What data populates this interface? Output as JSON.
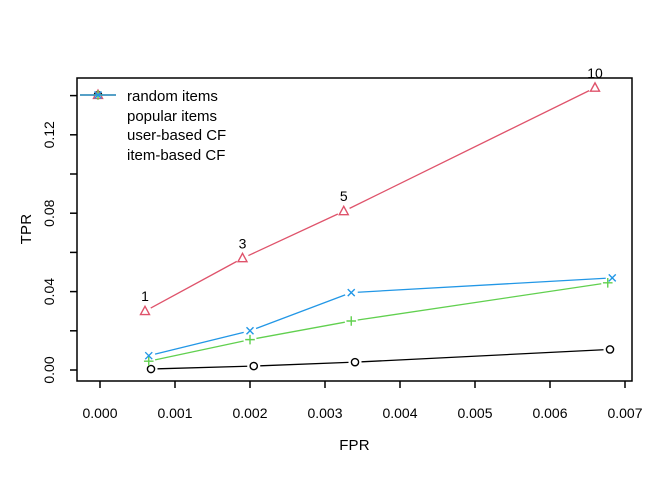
{
  "chart_data": {
    "type": "line",
    "title": "",
    "xlabel": "FPR",
    "ylabel": "TPR",
    "xlim": [
      0.0,
      0.007
    ],
    "ylim": [
      0.0,
      0.145
    ],
    "grid": false,
    "legend_position": "top-left",
    "background_color": "#ffffff",
    "axis_color": "#000000",
    "x_ticks": {
      "values": [
        0.0,
        0.001,
        0.002,
        0.003,
        0.004,
        0.005,
        0.006,
        0.007
      ],
      "labels": [
        "0.000",
        "0.001",
        "0.002",
        "0.003",
        "0.004",
        "0.005",
        "0.006",
        "0.007"
      ]
    },
    "y_ticks": {
      "values": [
        0.0,
        0.02,
        0.04,
        0.06,
        0.08,
        0.1,
        0.12,
        0.14
      ],
      "labels": [
        "0.00",
        "",
        "0.04",
        "",
        "0.08",
        "",
        "0.12",
        ""
      ]
    },
    "series": [
      {
        "name": "random items",
        "color": "#000000",
        "marker": "circle",
        "x": [
          0.00068,
          0.00205,
          0.0034,
          0.0068
        ],
        "y": [
          0.0005,
          0.002,
          0.004,
          0.0105
        ],
        "point_labels": [
          "",
          "",
          "",
          ""
        ]
      },
      {
        "name": "popular items",
        "color": "#DF536B",
        "marker": "triangle",
        "x": [
          0.0006,
          0.0019,
          0.00325,
          0.0066
        ],
        "y": [
          0.03,
          0.057,
          0.081,
          0.144
        ],
        "point_labels": [
          "1",
          "3",
          "5",
          "10"
        ]
      },
      {
        "name": "user-based CF",
        "color": "#61D04F",
        "marker": "plus",
        "x": [
          0.00065,
          0.002,
          0.00335,
          0.00677
        ],
        "y": [
          0.0045,
          0.0155,
          0.025,
          0.0445
        ],
        "point_labels": [
          "",
          "",
          "",
          ""
        ]
      },
      {
        "name": "item-based CF",
        "color": "#2297E6",
        "marker": "x",
        "x": [
          0.00065,
          0.002,
          0.00335,
          0.00683
        ],
        "y": [
          0.0073,
          0.02,
          0.0395,
          0.047
        ],
        "point_labels": [
          "",
          "",
          "",
          ""
        ]
      }
    ]
  }
}
